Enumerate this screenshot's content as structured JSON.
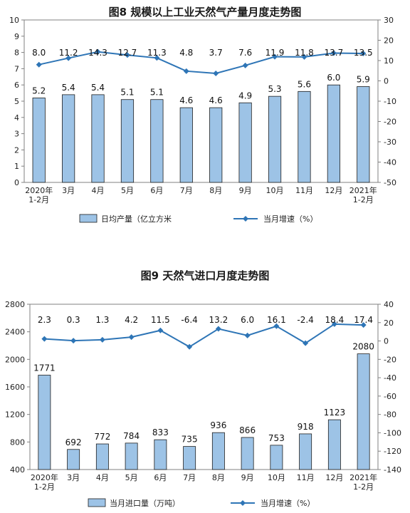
{
  "chart_data": [
    {
      "type": "bar",
      "title": "图8  规模以上工业天然气产量月度走势图",
      "categories": [
        "2020年\n1-2月",
        "3月",
        "4月",
        "5月",
        "6月",
        "7月",
        "8月",
        "9月",
        "10月",
        "11月",
        "12月",
        "2021年\n1-2月"
      ],
      "series": [
        {
          "name": "日均产量（亿立方米",
          "type": "bar",
          "axis": "left",
          "color": "#9dc3e6",
          "values": [
            5.2,
            5.4,
            5.4,
            5.1,
            5.1,
            4.6,
            4.6,
            4.9,
            5.3,
            5.6,
            6.0,
            5.9
          ],
          "labels": [
            "5.2",
            "5.4",
            "5.4",
            "5.1",
            "5.1",
            "4.6",
            "4.6",
            "4.9",
            "5.3",
            "5.6",
            "6.0",
            "5.9"
          ]
        },
        {
          "name": "当月增速（%）",
          "type": "line",
          "axis": "right",
          "color": "#2e75b6",
          "values": [
            8.0,
            11.2,
            14.3,
            12.7,
            11.3,
            4.8,
            3.7,
            7.6,
            11.9,
            11.8,
            13.7,
            13.5
          ],
          "labels": [
            "8.0",
            "11.2",
            "14.3",
            "12.7",
            "11.3",
            "4.8",
            "3.7",
            "7.6",
            "11.9",
            "11.8",
            "13.7",
            "13.5"
          ]
        }
      ],
      "ylim_left": [
        0,
        10
      ],
      "yticks_left": [
        "0",
        "1",
        "2",
        "3",
        "4",
        "5",
        "6",
        "7",
        "8",
        "9",
        "10"
      ],
      "ylim_right": [
        -50,
        30
      ],
      "yticks_right": [
        "-50",
        "-40",
        "-30",
        "-20",
        "-10",
        "0",
        "10",
        "20",
        "30"
      ],
      "grid": false,
      "legend_position": "bottom"
    },
    {
      "type": "bar",
      "title": "图9  天然气进口月度走势图",
      "categories": [
        "2020年\n1-2月",
        "3月",
        "4月",
        "5月",
        "6月",
        "7月",
        "8月",
        "9月",
        "10月",
        "11月",
        "12月",
        "2021年\n1-2月"
      ],
      "series": [
        {
          "name": "当月进口量（万吨）",
          "type": "bar",
          "axis": "left",
          "color": "#9dc3e6",
          "values": [
            1771,
            692,
            772,
            784,
            833,
            735,
            936,
            866,
            753,
            918,
            1123,
            2080
          ],
          "labels": [
            "1771",
            "692",
            "772",
            "784",
            "833",
            "735",
            "936",
            "866",
            "753",
            "918",
            "1123",
            "2080"
          ]
        },
        {
          "name": "当月增速（%）",
          "type": "line",
          "axis": "right",
          "color": "#2e75b6",
          "values": [
            2.3,
            0.3,
            1.3,
            4.2,
            11.5,
            -6.4,
            13.2,
            6.0,
            16.1,
            -2.4,
            18.4,
            17.4
          ],
          "labels": [
            "2.3",
            "0.3",
            "1.3",
            "4.2",
            "11.5",
            "-6.4",
            "13.2",
            "6.0",
            "16.1",
            "-2.4",
            "18.4",
            "17.4"
          ]
        }
      ],
      "ylim_left": [
        400,
        2800
      ],
      "yticks_left": [
        "400",
        "800",
        "1200",
        "1600",
        "2000",
        "2400",
        "2800"
      ],
      "ylim_right": [
        -140,
        40
      ],
      "yticks_right": [
        "-140",
        "-120",
        "-100",
        "-80",
        "-60",
        "-40",
        "-20",
        "0",
        "20",
        "40"
      ],
      "grid": false,
      "legend_position": "bottom"
    }
  ]
}
